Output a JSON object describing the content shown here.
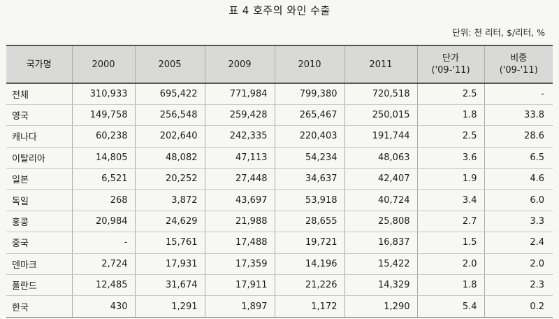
{
  "title": "표 4  호주의 와인 수출",
  "unit_note": "단위: 천 리터, $/리터, %",
  "headers": {
    "country": "국가명",
    "y2000": "2000",
    "y2005": "2005",
    "y2009": "2009",
    "y2010": "2010",
    "y2011": "2011",
    "unit_price": "단가",
    "unit_price_period": "('09-'11)",
    "share": "비중",
    "share_period": "('09-'11)"
  },
  "rows": [
    [
      "전체",
      "310,933",
      "695,422",
      "771,984",
      "799,380",
      "720,518",
      "2.5",
      "-"
    ],
    [
      "영국",
      "149,758",
      "256,548",
      "259,428",
      "265,467",
      "250,015",
      "1.8",
      "33.8"
    ],
    [
      "캐나다",
      "60,238",
      "202,640",
      "242,335",
      "220,403",
      "191,744",
      "2.5",
      "28.6"
    ],
    [
      "이탈리아",
      "14,805",
      "48,082",
      "47,113",
      "54,234",
      "48,063",
      "3.6",
      "6.5"
    ],
    [
      "일본",
      "6,521",
      "20,252",
      "27,448",
      "34,637",
      "42,407",
      "1.9",
      "4.6"
    ],
    [
      "독일",
      "268",
      "3,872",
      "43,697",
      "53,918",
      "40,724",
      "3.4",
      "6.0"
    ],
    [
      "홍콩",
      "20,984",
      "24,629",
      "21,988",
      "28,655",
      "25,808",
      "2.7",
      "3.3"
    ],
    [
      "중국",
      "-",
      "15,761",
      "17,488",
      "19,721",
      "16,837",
      "1.5",
      "2.4"
    ],
    [
      "덴마크",
      "2,724",
      "17,931",
      "17,359",
      "14,196",
      "15,422",
      "2.0",
      "2.0"
    ],
    [
      "폴란드",
      "12,485",
      "31,674",
      "17,911",
      "21,226",
      "14,329",
      "1.8",
      "2.3"
    ],
    [
      "한국",
      "430",
      "1,291",
      "1,897",
      "1,172",
      "1,290",
      "5.4",
      "0.2"
    ]
  ]
}
